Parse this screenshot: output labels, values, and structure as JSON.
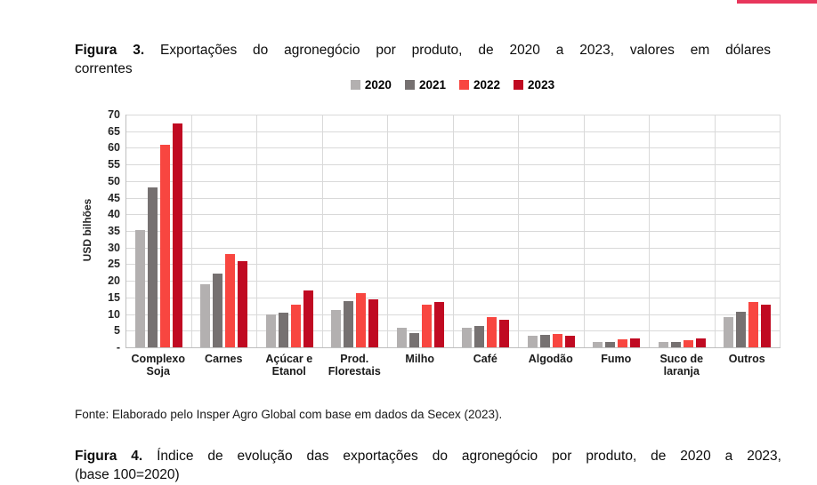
{
  "page": {
    "accent_bar_color": "#e8365c"
  },
  "figura3": {
    "label": "Figura 3.",
    "title_line1": "Exportações do agronegócio por produto, de 2020 a 2023, valores em dólares",
    "title_line2": "correntes"
  },
  "chart_data": {
    "type": "bar",
    "title": "Exportações do agronegócio por produto, de 2020 a 2023, valores em dólares correntes",
    "xlabel": "",
    "ylabel": "USD bilhões",
    "ylim": [
      0,
      70
    ],
    "ytick_step": 5,
    "ytick_labels": [
      "-",
      "5",
      "10",
      "15",
      "20",
      "25",
      "30",
      "35",
      "40",
      "45",
      "50",
      "55",
      "60",
      "65",
      "70"
    ],
    "grid": true,
    "legend_position": "top-center",
    "categories": [
      "Complexo\nSoja",
      "Carnes",
      "Açúcar e\nEtanol",
      "Prod.\nFlorestais",
      "Milho",
      "Café",
      "Algodão",
      "Fumo",
      "Suco de\nlaranja",
      "Outros"
    ],
    "series": [
      {
        "name": "2020",
        "color": "#b3b0b0",
        "values": [
          35.3,
          18.9,
          10.0,
          11.3,
          5.9,
          5.8,
          3.5,
          1.7,
          1.5,
          9.0
        ]
      },
      {
        "name": "2021",
        "color": "#767171",
        "values": [
          48.0,
          22.2,
          10.4,
          14.0,
          4.2,
          6.4,
          3.7,
          1.5,
          1.7,
          10.7
        ]
      },
      {
        "name": "2022",
        "color": "#f84640",
        "values": [
          61.0,
          28.0,
          12.9,
          16.4,
          12.8,
          9.2,
          4.0,
          2.4,
          2.2,
          13.6
        ]
      },
      {
        "name": "2023",
        "color": "#c00a22",
        "values": [
          67.3,
          26.0,
          17.2,
          14.5,
          13.7,
          8.3,
          3.5,
          2.7,
          2.7,
          12.9
        ]
      }
    ]
  },
  "fonte": {
    "text": "Fonte: Elaborado pelo Insper Agro Global com base em dados da Secex (2023)."
  },
  "figura4": {
    "label": "Figura 4.",
    "title_line1": "Índice de evolução das exportações do agronegócio por produto, de 2020 a 2023,",
    "title_line2": "(base 100=2020)"
  }
}
